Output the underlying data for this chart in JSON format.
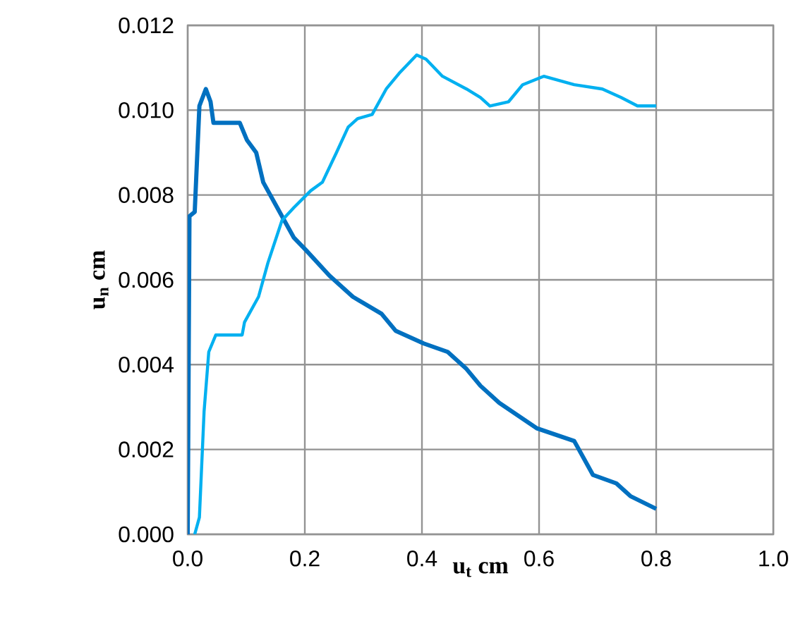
{
  "chart_data": {
    "type": "line",
    "xlabel": "u$_{t}$ cm",
    "ylabel": "u$_{n}$ cm",
    "xlim": [
      0,
      1.0
    ],
    "ylim": [
      0,
      0.012
    ],
    "xticks": [
      {
        "value": 0,
        "label": "0.0"
      },
      {
        "value": 0.2,
        "label": "0.2"
      },
      {
        "value": 0.4,
        "label": "0.4"
      },
      {
        "value": 0.6,
        "label": "0.6"
      },
      {
        "value": 0.8,
        "label": "0.8"
      },
      {
        "value": 1.0,
        "label": "1.0"
      }
    ],
    "yticks": [
      {
        "value": 0,
        "label": "0.000"
      },
      {
        "value": 0.002,
        "label": "0.002"
      },
      {
        "value": 0.004,
        "label": "0.004"
      },
      {
        "value": 0.006,
        "label": "0.006"
      },
      {
        "value": 0.008,
        "label": "0.008"
      },
      {
        "value": 0.01,
        "label": "0.010"
      },
      {
        "value": 0.012,
        "label": "0.012"
      }
    ],
    "grid": true,
    "marker": "none",
    "series": [
      {
        "color": "#0070c0",
        "x": [
          0,
          0.003,
          0.012,
          0.02,
          0.031,
          0.039,
          0.044,
          0.089,
          0.101,
          0.117,
          0.129,
          0.161,
          0.181,
          0.202,
          0.242,
          0.282,
          0.331,
          0.355,
          0.403,
          0.444,
          0.476,
          0.5,
          0.532,
          0.596,
          0.66,
          0.692,
          0.732,
          0.756,
          0.8
        ],
        "values": [
          0,
          0.0075,
          0.0076,
          0.0101,
          0.0105,
          0.0102,
          0.0097,
          0.0097,
          0.0093,
          0.009,
          0.0083,
          0.0075,
          0.007,
          0.0067,
          0.0061,
          0.0056,
          0.0052,
          0.0048,
          0.0045,
          0.0043,
          0.0039,
          0.0035,
          0.0031,
          0.0025,
          0.0022,
          0.0014,
          0.0012,
          0.0009,
          0.0006
        ]
      },
      {
        "color": "#00b0f0",
        "x": [
          0.012,
          0.02,
          0.028,
          0.036,
          0.048,
          0.093,
          0.097,
          0.121,
          0.137,
          0.161,
          0.181,
          0.21,
          0.23,
          0.254,
          0.274,
          0.29,
          0.315,
          0.339,
          0.363,
          0.391,
          0.407,
          0.435,
          0.476,
          0.5,
          0.516,
          0.548,
          0.572,
          0.608,
          0.66,
          0.708,
          0.74,
          0.768,
          0.8
        ],
        "values": [
          0,
          0.0004,
          0.0029,
          0.0043,
          0.0047,
          0.0047,
          0.005,
          0.0056,
          0.0064,
          0.0074,
          0.0077,
          0.0081,
          0.0083,
          0.009,
          0.0096,
          0.0098,
          0.0099,
          0.0105,
          0.0109,
          0.0113,
          0.0112,
          0.0108,
          0.0105,
          0.0103,
          0.0101,
          0.0102,
          0.0106,
          0.0108,
          0.0106,
          0.0105,
          0.0103,
          0.0101,
          0.0101
        ]
      }
    ]
  }
}
